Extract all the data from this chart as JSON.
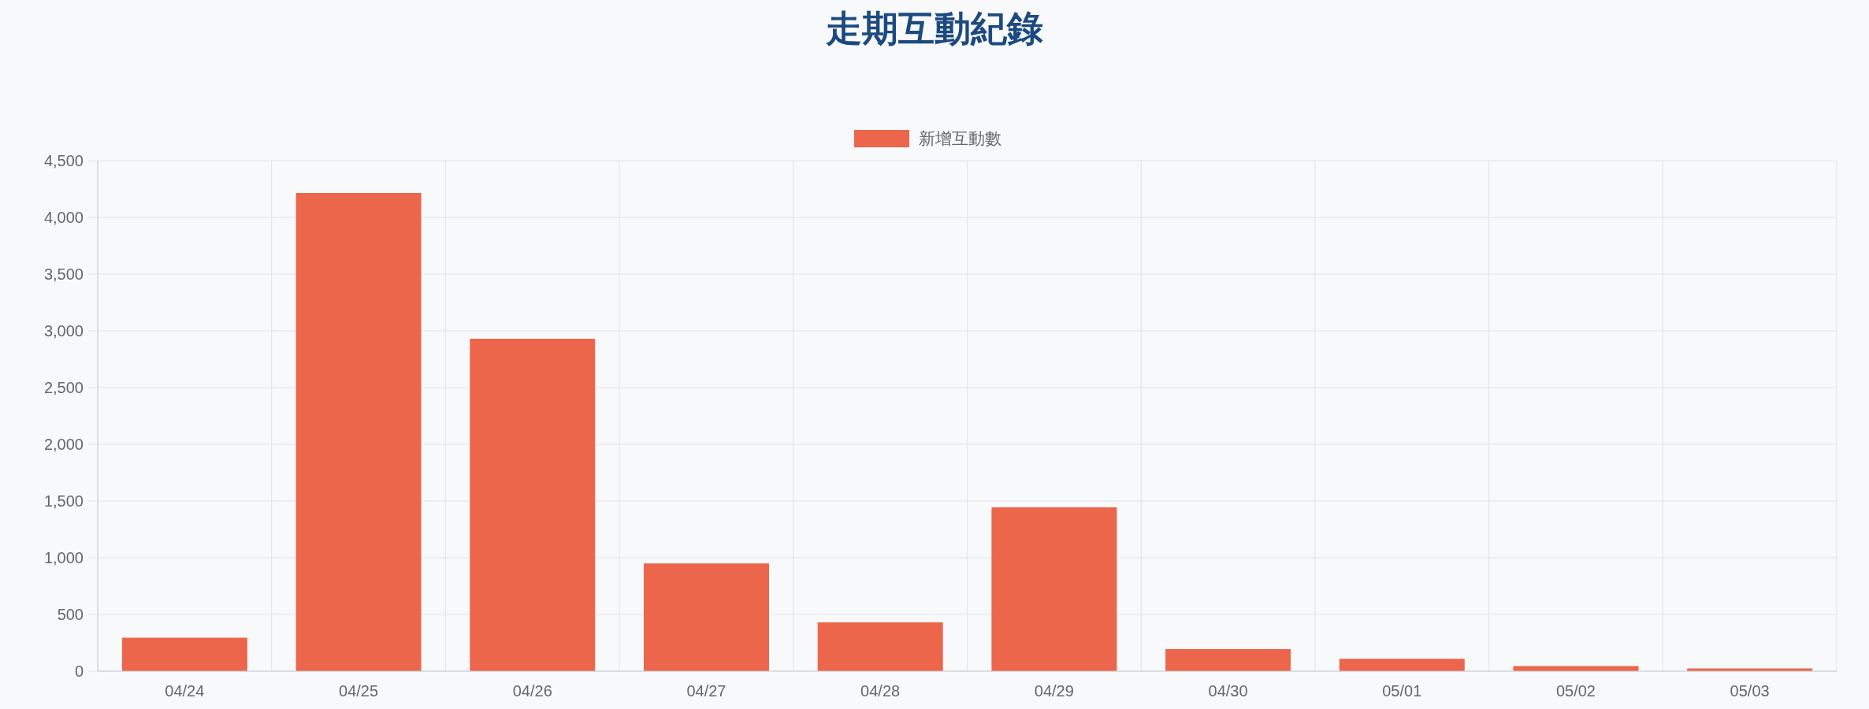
{
  "chart_data": {
    "type": "bar",
    "title": "走期互動紀錄",
    "categories": [
      "04/24",
      "04/25",
      "04/26",
      "04/27",
      "04/28",
      "04/29",
      "04/30",
      "05/01",
      "05/02",
      "05/03"
    ],
    "series": [
      {
        "name": "新增互動數",
        "color": "#ec664c",
        "values": [
          295,
          4215,
          2930,
          950,
          430,
          1445,
          195,
          110,
          45,
          25
        ]
      }
    ],
    "ylim": [
      0,
      4500
    ],
    "yticks": [
      0,
      500,
      {
        "value": 1000,
        "label": "1,000"
      },
      {
        "value": 1500,
        "label": "1,500"
      },
      {
        "value": 2000,
        "label": "2,000"
      },
      {
        "value": 2500,
        "label": "2,500"
      },
      {
        "value": 3000,
        "label": "3,000"
      },
      {
        "value": 3500,
        "label": "3,500"
      },
      {
        "value": 4000,
        "label": "4,000"
      },
      {
        "value": 4500,
        "label": "4,500"
      }
    ],
    "grid": true,
    "legend": "top"
  }
}
